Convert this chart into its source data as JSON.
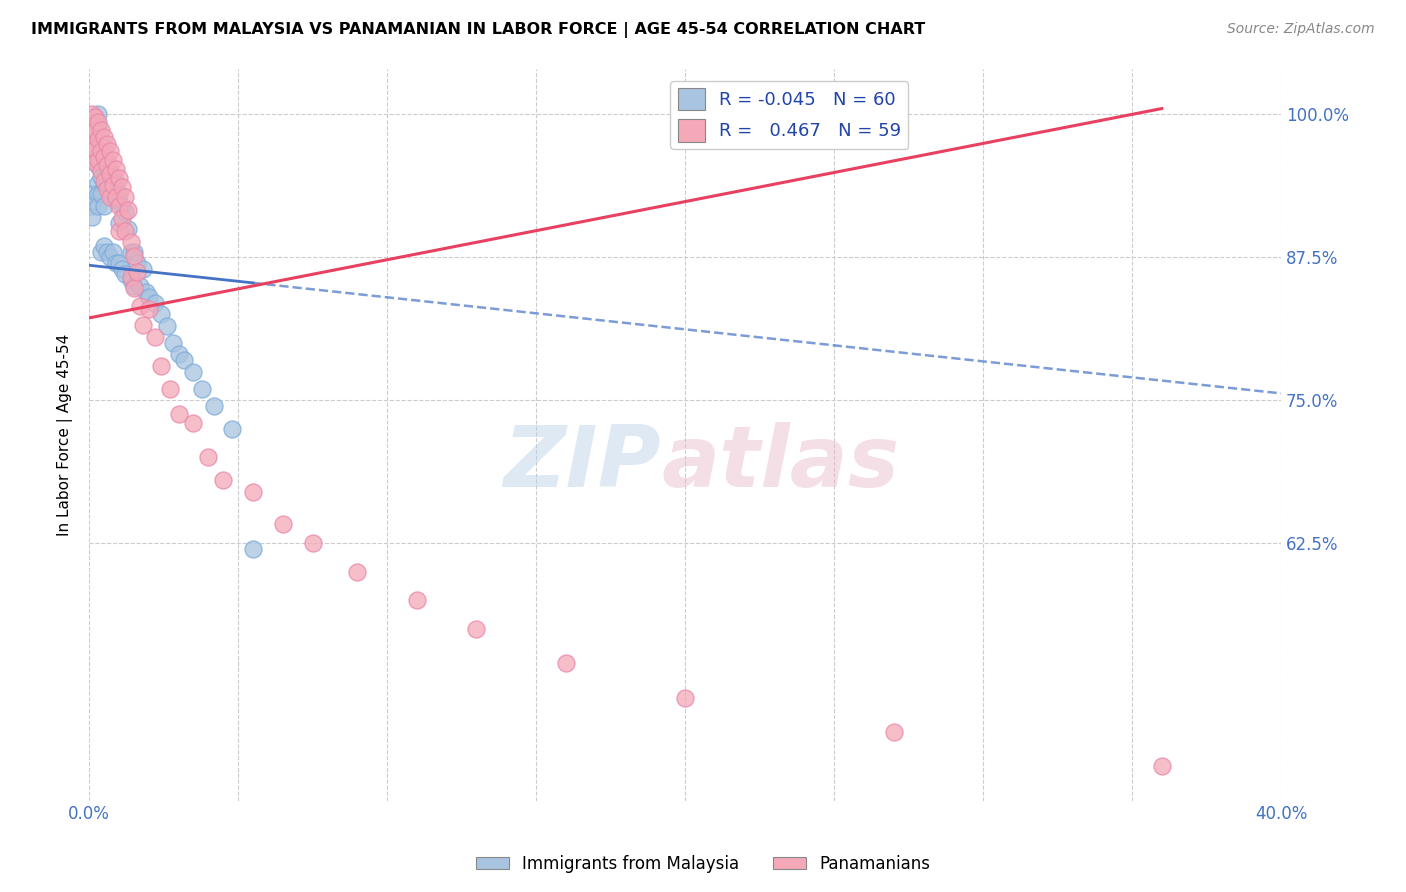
{
  "title": "IMMIGRANTS FROM MALAYSIA VS PANAMANIAN IN LABOR FORCE | AGE 45-54 CORRELATION CHART",
  "source": "Source: ZipAtlas.com",
  "ylabel": "In Labor Force | Age 45-54",
  "xlim": [
    0.0,
    0.4
  ],
  "ylim": [
    0.4,
    1.04
  ],
  "ytick_positions": [
    0.625,
    0.75,
    0.875,
    1.0
  ],
  "yticklabels": [
    "62.5%",
    "75.0%",
    "87.5%",
    "100.0%"
  ],
  "xtick_positions": [
    0.0,
    0.05,
    0.1,
    0.15,
    0.2,
    0.25,
    0.3,
    0.35,
    0.4
  ],
  "xticklabels": [
    "0.0%",
    "",
    "",
    "",
    "",
    "",
    "",
    "",
    "40.0%"
  ],
  "ytick_color": "#4472c4",
  "xtick_color": "#4472c4",
  "grid_color": "#cccccc",
  "malaysia_color": "#a8c4e0",
  "panama_color": "#f4a8b8",
  "malaysia_R": -0.045,
  "malaysia_N": 60,
  "panama_R": 0.467,
  "panama_N": 59,
  "malaysia_line_color": "#4472c4",
  "panama_line_color": "#e84060",
  "malaysia_line_x0": 0.0,
  "malaysia_line_x1": 0.4,
  "malaysia_line_y0": 0.868,
  "malaysia_line_y1": 0.756,
  "panama_line_x0": 0.0,
  "panama_line_x1": 0.36,
  "panama_line_y0": 0.822,
  "panama_line_y1": 1.005,
  "malaysia_scatter_x": [
    0.001,
    0.001,
    0.001,
    0.003,
    0.003,
    0.003,
    0.003,
    0.003,
    0.003,
    0.003,
    0.003,
    0.004,
    0.004,
    0.004,
    0.004,
    0.004,
    0.005,
    0.005,
    0.005,
    0.005,
    0.005,
    0.006,
    0.006,
    0.006,
    0.007,
    0.007,
    0.007,
    0.008,
    0.008,
    0.009,
    0.009,
    0.009,
    0.01,
    0.01,
    0.01,
    0.011,
    0.011,
    0.012,
    0.012,
    0.013,
    0.014,
    0.014,
    0.015,
    0.015,
    0.016,
    0.017,
    0.018,
    0.019,
    0.02,
    0.022,
    0.024,
    0.026,
    0.028,
    0.03,
    0.032,
    0.035,
    0.038,
    0.042,
    0.048,
    0.055
  ],
  "malaysia_scatter_y": [
    0.93,
    0.92,
    0.91,
    1.0,
    0.99,
    0.975,
    0.965,
    0.955,
    0.94,
    0.93,
    0.92,
    0.975,
    0.96,
    0.945,
    0.93,
    0.88,
    0.97,
    0.955,
    0.94,
    0.92,
    0.885,
    0.96,
    0.94,
    0.88,
    0.95,
    0.935,
    0.875,
    0.945,
    0.88,
    0.94,
    0.925,
    0.87,
    0.93,
    0.905,
    0.87,
    0.92,
    0.865,
    0.915,
    0.86,
    0.9,
    0.88,
    0.855,
    0.88,
    0.85,
    0.87,
    0.85,
    0.865,
    0.845,
    0.84,
    0.835,
    0.825,
    0.815,
    0.8,
    0.79,
    0.785,
    0.775,
    0.76,
    0.745,
    0.725,
    0.62
  ],
  "panama_scatter_x": [
    0.001,
    0.001,
    0.001,
    0.002,
    0.002,
    0.002,
    0.002,
    0.003,
    0.003,
    0.003,
    0.004,
    0.004,
    0.004,
    0.005,
    0.005,
    0.005,
    0.006,
    0.006,
    0.006,
    0.007,
    0.007,
    0.007,
    0.008,
    0.008,
    0.009,
    0.009,
    0.01,
    0.01,
    0.01,
    0.011,
    0.011,
    0.012,
    0.012,
    0.013,
    0.014,
    0.014,
    0.015,
    0.015,
    0.016,
    0.017,
    0.018,
    0.02,
    0.022,
    0.024,
    0.027,
    0.03,
    0.035,
    0.04,
    0.045,
    0.055,
    0.065,
    0.075,
    0.09,
    0.11,
    0.13,
    0.16,
    0.2,
    0.27,
    0.36
  ],
  "panama_scatter_y": [
    1.0,
    0.99,
    0.975,
    0.998,
    0.985,
    0.97,
    0.958,
    0.993,
    0.978,
    0.96,
    0.986,
    0.968,
    0.95,
    0.98,
    0.963,
    0.942,
    0.974,
    0.956,
    0.935,
    0.968,
    0.948,
    0.928,
    0.96,
    0.938,
    0.952,
    0.928,
    0.944,
    0.92,
    0.898,
    0.936,
    0.909,
    0.928,
    0.898,
    0.916,
    0.888,
    0.858,
    0.876,
    0.848,
    0.862,
    0.832,
    0.816,
    0.83,
    0.805,
    0.78,
    0.76,
    0.738,
    0.73,
    0.7,
    0.68,
    0.67,
    0.642,
    0.625,
    0.6,
    0.575,
    0.55,
    0.52,
    0.49,
    0.46,
    0.43
  ]
}
